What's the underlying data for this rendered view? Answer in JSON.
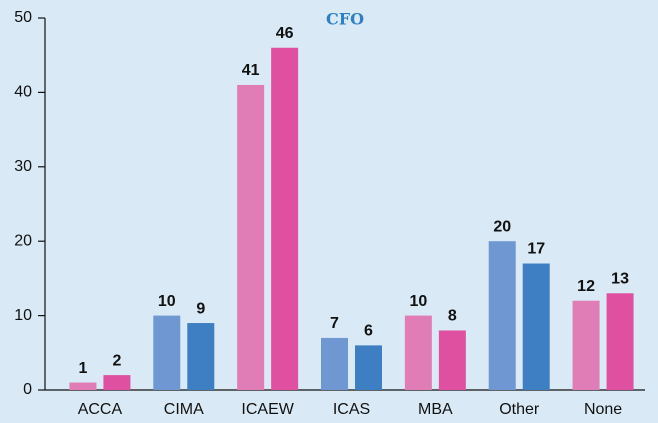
{
  "chart_data": {
    "type": "bar",
    "title": "CFO",
    "categories": [
      "ACCA",
      "CIMA",
      "ICAEW",
      "ICAS",
      "MBA",
      "Other",
      "None"
    ],
    "series": [
      {
        "values": [
          1,
          10,
          41,
          7,
          10,
          20,
          12
        ],
        "colors": [
          "#e07db6",
          "#6f98d2",
          "#e07db6",
          "#6f98d2",
          "#e07db6",
          "#6f98d2",
          "#e07db6"
        ]
      },
      {
        "values": [
          2,
          9,
          46,
          6,
          8,
          17,
          13
        ],
        "colors": [
          "#df50a0",
          "#3e7fc3",
          "#df50a0",
          "#3e7fc3",
          "#df50a0",
          "#3e7fc3",
          "#df50a0"
        ]
      }
    ],
    "ylim": [
      0,
      50
    ],
    "yticks": [
      0,
      10,
      20,
      30,
      40,
      50
    ],
    "grid": false
  }
}
